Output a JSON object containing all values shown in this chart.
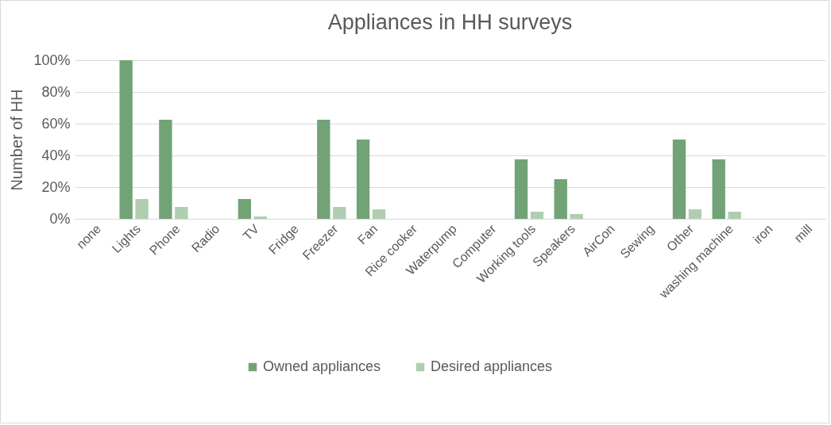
{
  "chart_data": {
    "type": "bar",
    "title": "Appliances in HH surveys",
    "ylabel": "Number of HH",
    "categories": [
      "none",
      "Lights",
      "Phone",
      "Radio",
      "TV",
      "Fridge",
      "Freezer",
      "Fan",
      "Rice cooker",
      "Waterpump",
      "Computer",
      "Working tools",
      "Speakers",
      "AirCon",
      "Sewing",
      "Other",
      "washing machine",
      "iron",
      "mill"
    ],
    "series": [
      {
        "name": "Owned appliances",
        "color": "#71a376",
        "values": [
          0,
          100,
          62.5,
          0,
          12.5,
          0,
          62.5,
          50,
          0,
          0,
          0,
          37.5,
          25,
          0,
          0,
          50,
          37.5,
          0,
          0
        ]
      },
      {
        "name": "Desired appliances",
        "color": "#b0cdb1",
        "values": [
          0,
          12.5,
          7.5,
          0,
          1.5,
          0,
          7.5,
          6,
          0,
          0,
          0,
          4.5,
          3,
          0,
          0,
          6,
          4.5,
          0,
          0
        ]
      }
    ],
    "ylim": [
      0,
      100
    ],
    "yticks": [
      {
        "value": 0,
        "label": "0%"
      },
      {
        "value": 20,
        "label": "20%"
      },
      {
        "value": 40,
        "label": "40%"
      },
      {
        "value": 60,
        "label": "60%"
      },
      {
        "value": 80,
        "label": "80%"
      },
      {
        "value": 100,
        "label": "100%"
      }
    ],
    "grid": "y",
    "legend": "bottom"
  }
}
